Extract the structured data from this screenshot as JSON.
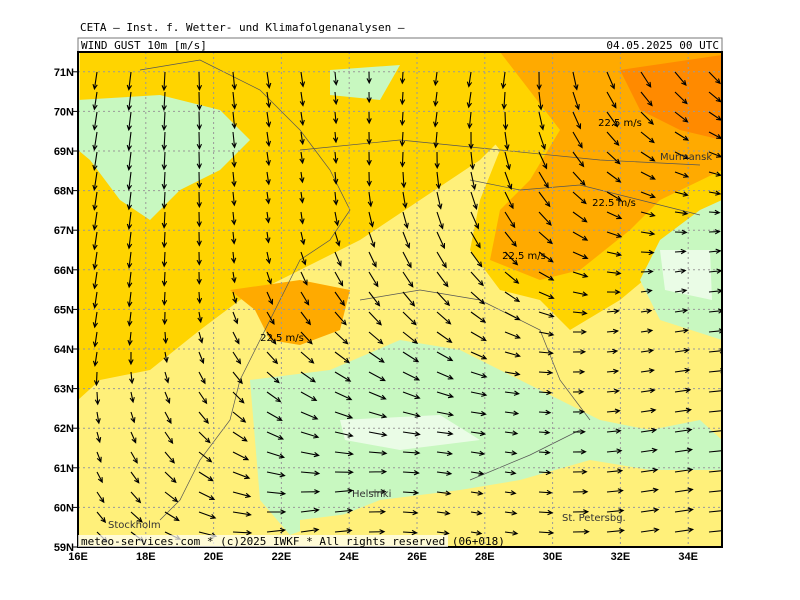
{
  "header": {
    "source": "CETA – Inst. f. Wetter- und Klimafolgenanalysen –",
    "parameter": "WIND_GUST 10m [m/s]",
    "datetime": "04.05.2025 00 UTC"
  },
  "map": {
    "lat_labels": [
      "59N",
      "60N",
      "61N",
      "62N",
      "63N",
      "64N",
      "65N",
      "66N",
      "67N",
      "68N",
      "69N",
      "70N",
      "71N"
    ],
    "lon_labels": [
      "16E",
      "18E",
      "20E",
      "22E",
      "24E",
      "26E",
      "28E",
      "30E",
      "32E",
      "34E"
    ],
    "contour_labels": [
      "22.5 m/s",
      "22.5 m/s",
      "22.5 m/s",
      "22.5 m/s"
    ],
    "places": [
      "Murmansk",
      "Helsinki",
      "St. Petersbg.",
      "Stockholm"
    ]
  },
  "footer": "meteo-services.com * (c)2025 IWKF * All rights reserved (06+018)"
}
